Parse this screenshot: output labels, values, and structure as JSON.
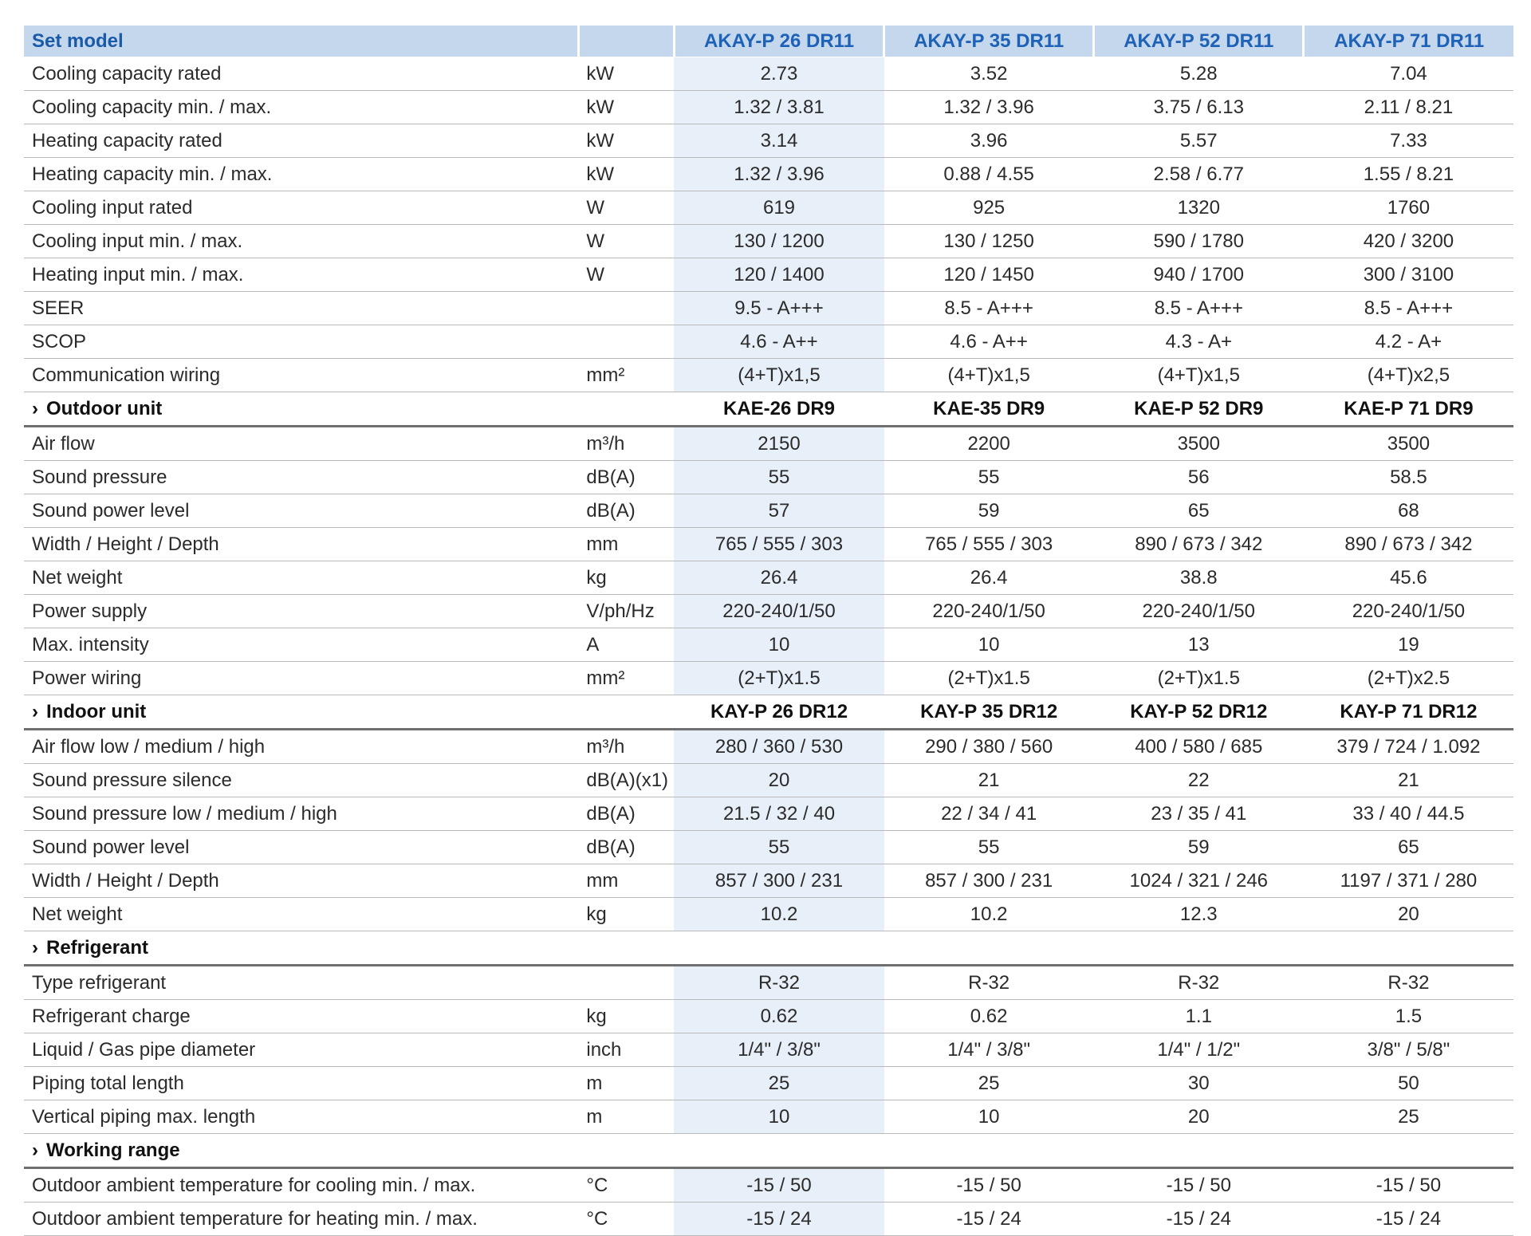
{
  "header": {
    "label": "Set model",
    "models": [
      "AKAY-P 26 DR11",
      "AKAY-P 35 DR11",
      "AKAY-P 52 DR11",
      "AKAY-P 71 DR11"
    ]
  },
  "sections": [
    {
      "title": "",
      "models": [],
      "rows": [
        {
          "label": "Cooling capacity rated",
          "unit": "kW",
          "values": [
            "2.73",
            "3.52",
            "5.28",
            "7.04"
          ]
        },
        {
          "label": "Cooling capacity min. / max.",
          "unit": "kW",
          "values": [
            "1.32 / 3.81",
            "1.32 / 3.96",
            "3.75 / 6.13",
            "2.11 / 8.21"
          ]
        },
        {
          "label": "Heating capacity rated",
          "unit": "kW",
          "values": [
            "3.14",
            "3.96",
            "5.57",
            "7.33"
          ]
        },
        {
          "label": "Heating capacity min. / max.",
          "unit": "kW",
          "values": [
            "1.32 / 3.96",
            "0.88 / 4.55",
            "2.58 / 6.77",
            "1.55 / 8.21"
          ]
        },
        {
          "label": "Cooling input rated",
          "unit": "W",
          "values": [
            "619",
            "925",
            "1320",
            "1760"
          ]
        },
        {
          "label": "Cooling input min. / max.",
          "unit": "W",
          "values": [
            "130 / 1200",
            "130 / 1250",
            "590 / 1780",
            "420 / 3200"
          ]
        },
        {
          "label": "Heating input min. / max.",
          "unit": "W",
          "values": [
            "120 / 1400",
            "120 / 1450",
            "940 / 1700",
            "300 / 3100"
          ]
        },
        {
          "label": "SEER",
          "unit": "",
          "values": [
            "9.5 - A+++",
            "8.5 - A+++",
            "8.5 - A+++",
            "8.5 - A+++"
          ]
        },
        {
          "label": "SCOP",
          "unit": "",
          "values": [
            "4.6 - A++",
            "4.6 - A++",
            "4.3 - A+",
            "4.2 - A+"
          ]
        },
        {
          "label": "Communication wiring",
          "unit": "mm²",
          "values": [
            "(4+T)x1,5",
            "(4+T)x1,5",
            "(4+T)x1,5",
            "(4+T)x2,5"
          ]
        }
      ]
    },
    {
      "title": "Outdoor unit",
      "models": [
        "KAE-26 DR9",
        "KAE-35 DR9",
        "KAE-P 52 DR9",
        "KAE-P 71 DR9"
      ],
      "rows": [
        {
          "label": "Air flow",
          "unit": "m³/h",
          "values": [
            "2150",
            "2200",
            "3500",
            "3500"
          ]
        },
        {
          "label": "Sound pressure",
          "unit": "dB(A)",
          "values": [
            "55",
            "55",
            "56",
            "58.5"
          ]
        },
        {
          "label": "Sound power level",
          "unit": "dB(A)",
          "values": [
            "57",
            "59",
            "65",
            "68"
          ]
        },
        {
          "label": "Width / Height / Depth",
          "unit": "mm",
          "values": [
            "765 / 555 / 303",
            "765 / 555 / 303",
            "890 / 673 / 342",
            "890 / 673 / 342"
          ]
        },
        {
          "label": "Net weight",
          "unit": "kg",
          "values": [
            "26.4",
            "26.4",
            "38.8",
            "45.6"
          ]
        },
        {
          "label": "Power supply",
          "unit": "V/ph/Hz",
          "values": [
            "220-240/1/50",
            "220-240/1/50",
            "220-240/1/50",
            "220-240/1/50"
          ]
        },
        {
          "label": "Max. intensity",
          "unit": "A",
          "values": [
            "10",
            "10",
            "13",
            "19"
          ]
        },
        {
          "label": "Power wiring",
          "unit": "mm²",
          "values": [
            "(2+T)x1.5",
            "(2+T)x1.5",
            "(2+T)x1.5",
            "(2+T)x2.5"
          ]
        }
      ]
    },
    {
      "title": "Indoor unit",
      "models": [
        "KAY-P 26 DR12",
        "KAY-P 35 DR12",
        "KAY-P 52 DR12",
        "KAY-P 71 DR12"
      ],
      "rows": [
        {
          "label": "Air flow low / medium / high",
          "unit": "m³/h",
          "values": [
            "280 / 360 / 530",
            "290 / 380 / 560",
            "400 / 580 / 685",
            "379 / 724 / 1.092"
          ]
        },
        {
          "label": "Sound pressure silence",
          "unit": "dB(A)(x1)",
          "values": [
            "20",
            "21",
            "22",
            "21"
          ]
        },
        {
          "label": "Sound pressure low / medium / high",
          "unit": "dB(A)",
          "values": [
            "21.5 / 32 / 40",
            "22 / 34 / 41",
            "23 / 35 / 41",
            "33 / 40 / 44.5"
          ]
        },
        {
          "label": "Sound power level",
          "unit": "dB(A)",
          "values": [
            "55",
            "55",
            "59",
            "65"
          ]
        },
        {
          "label": "Width / Height / Depth",
          "unit": "mm",
          "values": [
            "857 / 300 / 231",
            "857 / 300 / 231",
            "1024 / 321 / 246",
            "1197 / 371 / 280"
          ]
        },
        {
          "label": "Net weight",
          "unit": "kg",
          "values": [
            "10.2",
            "10.2",
            "12.3",
            "20"
          ]
        }
      ]
    },
    {
      "title": "Refrigerant",
      "models": [
        "",
        "",
        "",
        ""
      ],
      "rows": [
        {
          "label": "Type refrigerant",
          "unit": "",
          "values": [
            "R-32",
            "R-32",
            "R-32",
            "R-32"
          ]
        },
        {
          "label": "Refrigerant charge",
          "unit": "kg",
          "values": [
            "0.62",
            "0.62",
            "1.1",
            "1.5"
          ]
        },
        {
          "label": "Liquid / Gas pipe diameter",
          "unit": "inch",
          "values": [
            "1/4\" / 3/8\"",
            "1/4\" / 3/8\"",
            "1/4\" / 1/2\"",
            "3/8\" / 5/8\""
          ]
        },
        {
          "label": "Piping total length",
          "unit": "m",
          "values": [
            "25",
            "25",
            "30",
            "50"
          ]
        },
        {
          "label": "Vertical piping max. length",
          "unit": "m",
          "values": [
            "10",
            "10",
            "20",
            "25"
          ]
        }
      ]
    },
    {
      "title": "Working range",
      "models": [
        "",
        "",
        "",
        ""
      ],
      "rows": [
        {
          "label": "Outdoor ambient temperature for cooling min. / max.",
          "unit": "°C",
          "values": [
            "-15 / 50",
            "-15 / 50",
            "-15 / 50",
            "-15 / 50"
          ]
        },
        {
          "label": "Outdoor ambient temperature for heating min. / max.",
          "unit": "°C",
          "values": [
            "-15 / 24",
            "-15 / 24",
            "-15 / 24",
            "-15 / 24"
          ]
        }
      ]
    }
  ]
}
